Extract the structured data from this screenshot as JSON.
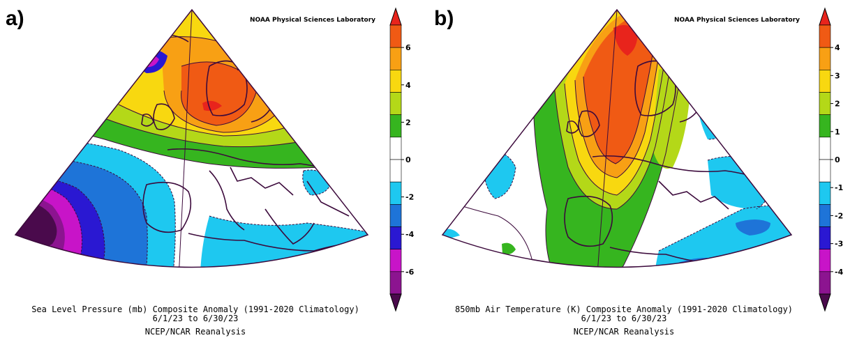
{
  "panels": [
    {
      "letter": "a)",
      "credit": "NOAA Physical Sciences Laboratory",
      "caption_line1": "Sea Level Pressure (mb) Composite Anomaly (1991-2020 Climatology)",
      "caption_line2": "6/1/23   to 6/30/23",
      "caption_line3": "NCEP/NCAR Reanalysis",
      "colorbar": {
        "ticks": [
          "6",
          "4",
          "2",
          "0",
          "-2",
          "-4",
          "-6"
        ],
        "colors": [
          "#e8241c",
          "#f05a14",
          "#f8a014",
          "#f8d810",
          "#b4d818",
          "#36b51f",
          "#ffffff",
          "#ffffff",
          "#1ec8f0",
          "#1e74d8",
          "#2a18d2",
          "#c814c8",
          "#8c1490",
          "#4a0a4c"
        ]
      }
    },
    {
      "letter": "b)",
      "credit": "NOAA Physical Sciences Laboratory",
      "caption_line1": "850mb Air Temperature (K) Composite Anomaly (1991-2020 Climatology)",
      "caption_line2": "6/1/23   to 6/30/23",
      "caption_line3": "NCEP/NCAR Reanalysis",
      "colorbar": {
        "ticks": [
          "4",
          "3",
          "2",
          "1",
          "0",
          "-1",
          "-2",
          "-3",
          "-4"
        ],
        "colors": [
          "#e8241c",
          "#f05a14",
          "#f8a014",
          "#f8d810",
          "#b4d818",
          "#36b51f",
          "#ffffff",
          "#ffffff",
          "#1ec8f0",
          "#1e74d8",
          "#2a18d2",
          "#c814c8",
          "#8c1490",
          "#4a0a4c"
        ]
      }
    }
  ],
  "colors": {
    "contour": "#3c0a3c",
    "coast": "#3c0a3c"
  }
}
